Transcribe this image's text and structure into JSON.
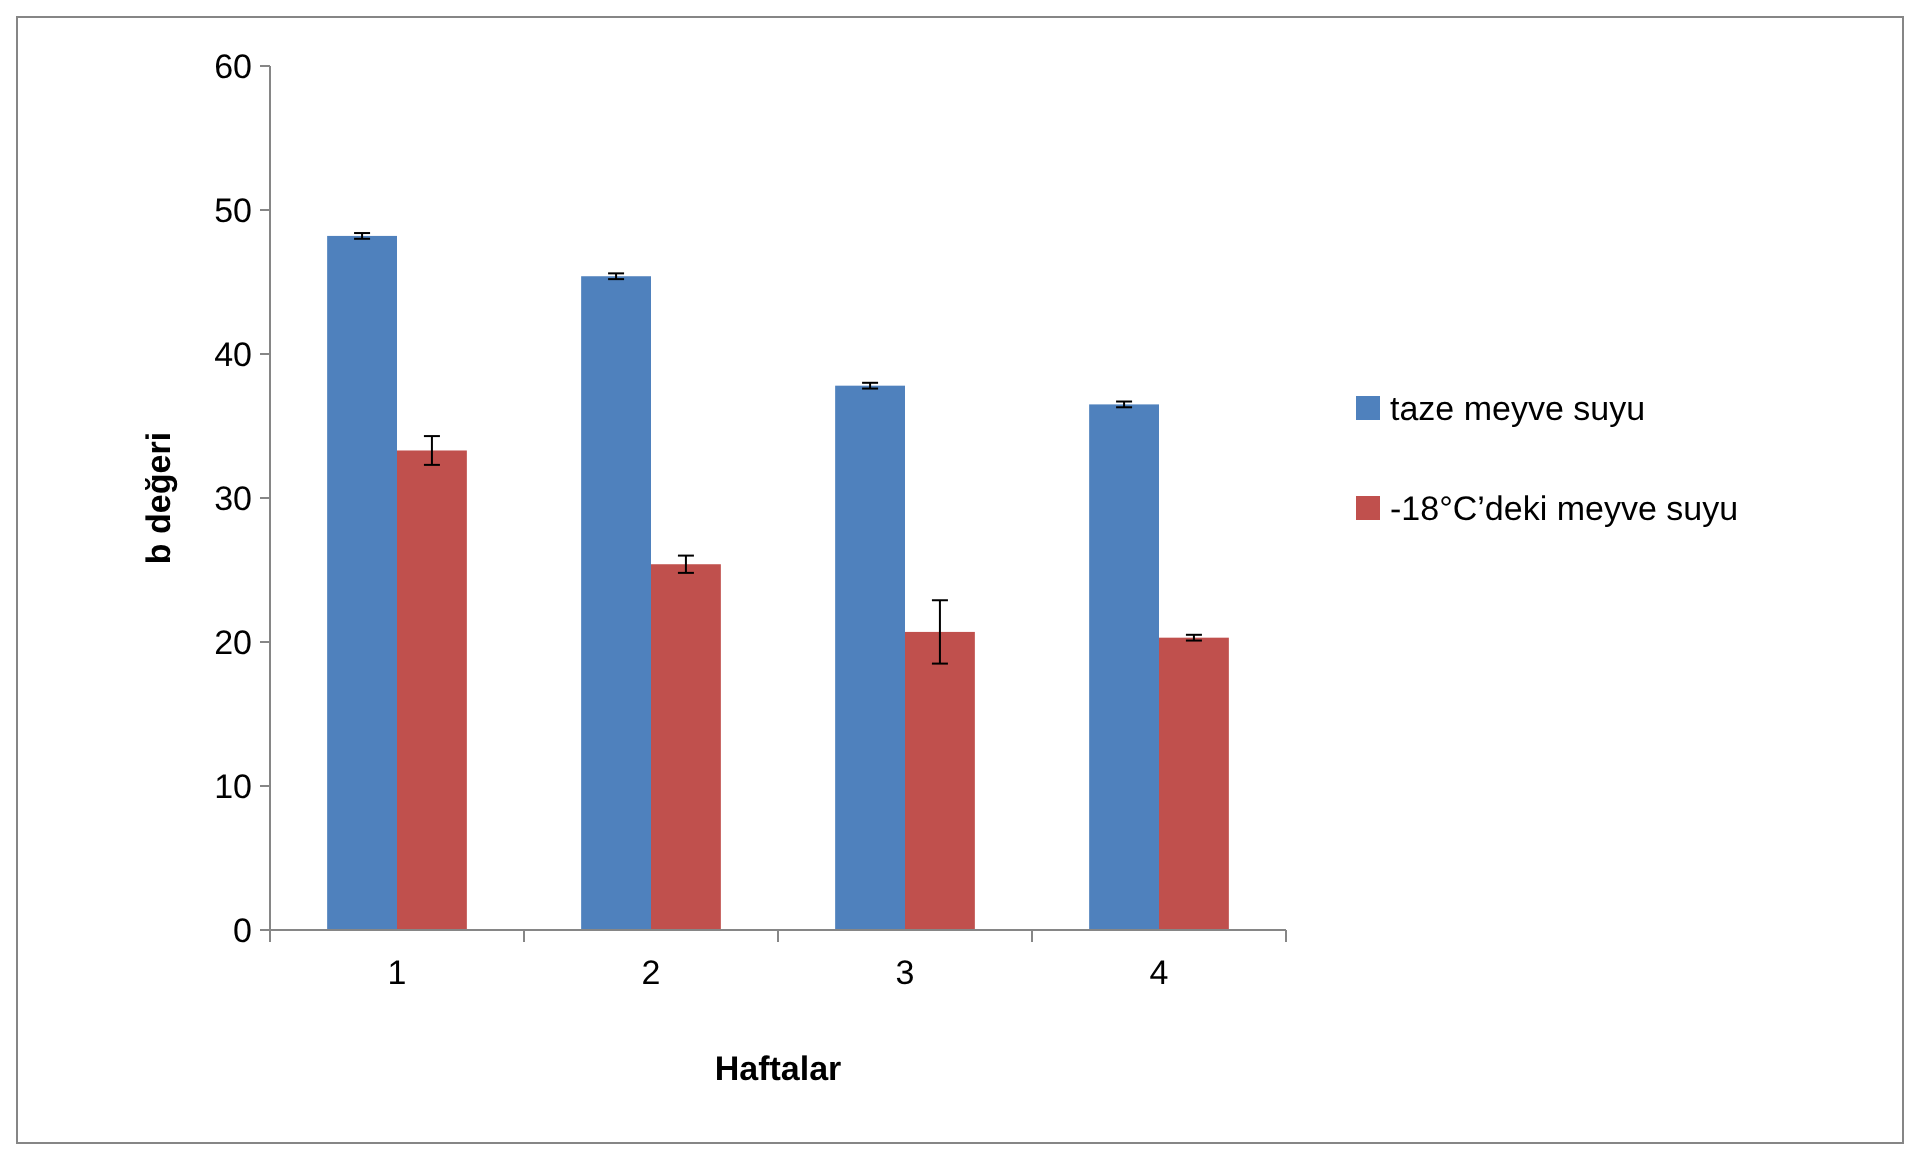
{
  "chart_data": {
    "type": "bar",
    "xlabel": "Haftalar",
    "ylabel": "b değeri",
    "categories": [
      "1",
      "2",
      "3",
      "4"
    ],
    "series": [
      {
        "name": "taze meyve suyu",
        "color": "#4f81bd",
        "values": [
          48.2,
          45.4,
          37.8,
          36.5
        ],
        "errors": [
          0.2,
          0.2,
          0.2,
          0.2
        ]
      },
      {
        "name": "-18°C’deki meyve suyu",
        "color": "#c0504d",
        "values": [
          33.3,
          25.4,
          20.7,
          20.3
        ],
        "errors": [
          1.0,
          0.6,
          2.2,
          0.2
        ]
      }
    ],
    "ylim": [
      0,
      60
    ],
    "yticks": [
      0,
      10,
      20,
      30,
      40,
      50,
      60
    ],
    "grid": false,
    "legend": "right"
  }
}
